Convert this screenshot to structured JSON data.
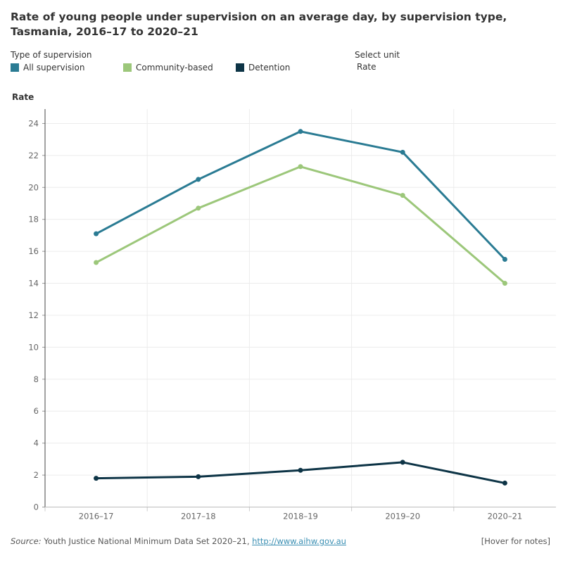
{
  "chart_data": {
    "type": "line",
    "title": "Rate of young people under supervision on an average day, by supervision type, Tasmania, 2016–17 to 2020–21",
    "legend_title": "Type of supervision",
    "unit_label": "Select unit",
    "unit_value": "Rate",
    "y_label": "Rate",
    "categories": [
      "2016–17",
      "2017–18",
      "2018–19",
      "2019–20",
      "2020–21"
    ],
    "series": [
      {
        "name": "All supervision",
        "color": "#2a7b93",
        "values": [
          17.1,
          20.5,
          23.5,
          22.2,
          15.5
        ]
      },
      {
        "name": "Community-based",
        "color": "#9cc77a",
        "values": [
          15.3,
          18.7,
          21.3,
          19.5,
          14.0
        ]
      },
      {
        "name": "Detention",
        "color": "#0d3446",
        "values": [
          1.8,
          1.9,
          2.3,
          2.8,
          1.5
        ]
      }
    ],
    "ylim": [
      0,
      24.9
    ],
    "yticks": [
      0,
      2,
      4,
      6,
      8,
      10,
      12,
      14,
      16,
      18,
      20,
      22,
      24
    ],
    "grid": true,
    "source_label": "Source:",
    "source_text": " Youth Justice National Minimum Data Set 2020–21, ",
    "source_link": "http://www.aihw.gov.au",
    "notes": "[Hover for notes]"
  }
}
